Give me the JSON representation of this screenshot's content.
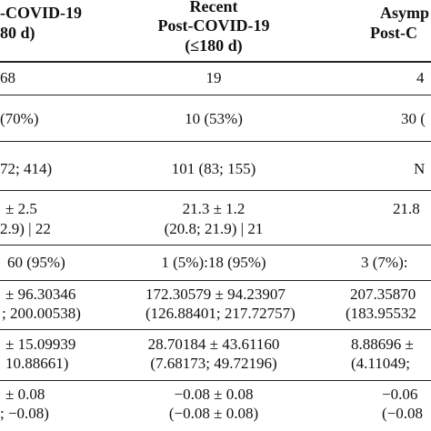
{
  "header": {
    "col0": [
      "-COVID-19",
      "80 d)"
    ],
    "col1": [
      "Recent",
      "Post-COVID-19",
      "(≤180 d)"
    ],
    "col2": [
      "Asymp",
      "Post-C"
    ]
  },
  "rows": [
    [
      "68",
      "19",
      "4"
    ],
    [
      "(70%)",
      "10 (53%)",
      "30 ("
    ],
    [
      "72; 414)",
      "101 (83; 155)",
      "N"
    ],
    [
      [
        "± 2.5",
        "2.9) | 22"
      ],
      [
        "21.3 ± 1.2",
        "(20.8; 21.9) | 21"
      ],
      [
        "21.8",
        ""
      ]
    ],
    [
      "60 (95%)",
      "1 (5%):18 (95%)",
      "3 (7%):"
    ],
    [
      [
        "± 96.30346",
        "; 200.00538)"
      ],
      [
        "172.30579 ± 94.23907",
        "(126.88401; 217.72757)"
      ],
      [
        "207.35870",
        "(183.95532"
      ]
    ],
    [
      [
        "± 15.09939",
        "10.88661)"
      ],
      [
        "28.70184 ± 43.61160",
        "(7.68173; 49.72196)"
      ],
      [
        "8.88696 ±",
        "(4.11049;"
      ]
    ],
    [
      [
        "± 0.08",
        "; −0.08)"
      ],
      [
        "−0.08 ± 0.08",
        "(−0.08 ± 0.08)"
      ],
      [
        "−0.06",
        "(−0.08"
      ]
    ]
  ]
}
